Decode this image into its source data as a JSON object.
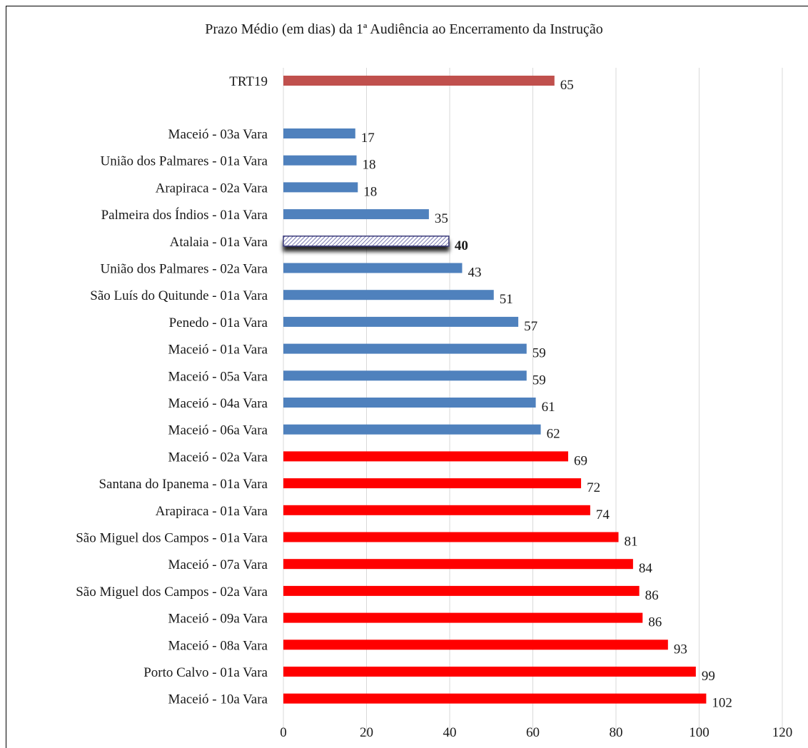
{
  "chart_data": {
    "type": "bar",
    "orientation": "horizontal",
    "title": "Prazo Médio (em dias) da 1ª Audiência ao Encerramento da Instrução",
    "xlim": [
      0,
      120
    ],
    "xticks": [
      "0",
      "20",
      "40",
      "60",
      "80",
      "100",
      "120"
    ],
    "grid": "vertical",
    "colors": {
      "reference": "#C0504D",
      "below": "#4F81BD",
      "above": "#FF0000",
      "highlight_stroke": "#3A3A7A"
    },
    "categories": [
      "TRT19",
      "Maceió  - 03a Vara",
      "União dos Palmares  - 01a Vara",
      "Arapiraca  - 02a Vara",
      "Palmeira dos Índios  - 01a Vara",
      "Atalaia  - 01a Vara",
      "União dos Palmares  - 02a Vara",
      "São Luís do Quitunde  - 01a Vara",
      "Penedo  - 01a Vara",
      "Maceió  - 01a Vara",
      "Maceió  - 05a Vara",
      "Maceió  - 04a Vara",
      "Maceió  - 06a Vara",
      "Maceió  - 02a Vara",
      "Santana do Ipanema  - 01a Vara",
      "Arapiraca  - 01a Vara",
      "São Miguel dos Campos  - 01a Vara",
      "Maceió  - 07a Vara",
      "São Miguel dos Campos  - 02a Vara",
      "Maceió  - 09a Vara",
      "Maceió  - 08a Vara",
      "Porto Calvo  - 01a Vara",
      "Maceió  - 10a Vara"
    ],
    "values": [
      65,
      17,
      18,
      18,
      35,
      40,
      43,
      51,
      57,
      59,
      59,
      61,
      62,
      69,
      72,
      74,
      81,
      84,
      86,
      86,
      93,
      99,
      102
    ],
    "bar_values": [
      65.2,
      17.3,
      17.6,
      17.9,
      35.0,
      39.8,
      43.0,
      50.6,
      56.5,
      58.5,
      58.5,
      60.7,
      61.9,
      68.5,
      71.6,
      73.8,
      80.6,
      84.1,
      85.6,
      86.4,
      92.5,
      99.2,
      101.7
    ],
    "labels": [
      "65",
      "17",
      "18",
      "18",
      "35",
      "40",
      "43",
      "51",
      "57",
      "59",
      "59",
      "61",
      "62",
      "69",
      "72",
      "74",
      "81",
      "84",
      "86",
      "86",
      "93",
      "99",
      "102"
    ],
    "bar_groups": [
      "reference",
      "below",
      "below",
      "below",
      "below",
      "highlight",
      "below",
      "below",
      "below",
      "below",
      "below",
      "below",
      "below",
      "above",
      "above",
      "above",
      "above",
      "above",
      "above",
      "above",
      "above",
      "above",
      "above"
    ]
  }
}
